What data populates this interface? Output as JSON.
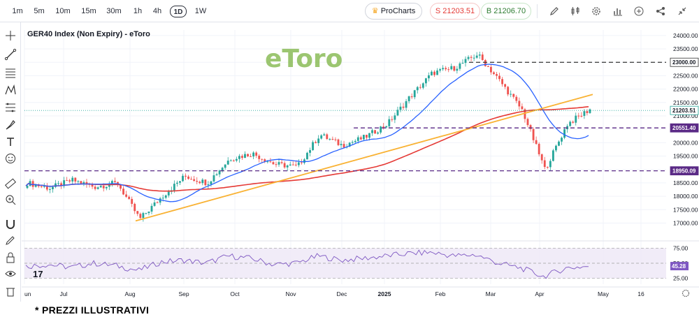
{
  "toolbar": {
    "timeframes": [
      "1m",
      "5m",
      "10m",
      "15m",
      "30m",
      "1h",
      "4h",
      "1D",
      "1W"
    ],
    "active_timeframe": "1D",
    "procharts_label": "ProCharts",
    "sell_label": "S 21203.51",
    "buy_label": "B 21206.70",
    "colors": {
      "sell": "#e53935",
      "buy": "#2e7d32",
      "crown": "#f5a623"
    }
  },
  "chart": {
    "title": "GER40 Index (Non Expiry) - eToro",
    "watermark": "eToro",
    "footer_note": "* PREZZI ILLUSTRATIVI",
    "y_ticks": [
      "24000.00",
      "23500.00",
      "23000.00",
      "22500.00",
      "22000.00",
      "21500.00",
      "21000.00",
      "20500.00",
      "20000.00",
      "19500.00",
      "19000.00",
      "18500.00",
      "18000.00",
      "17500.00",
      "17000.00"
    ],
    "rsi_ticks": [
      "75.00",
      "50.00",
      "25.00"
    ],
    "rsi_value_label": "45.28",
    "x_labels": [
      "un",
      "Jul",
      "Aug",
      "Sep",
      "Oct",
      "Nov",
      "Dec",
      "2025",
      "Feb",
      "Mar",
      "Apr",
      "May",
      "16"
    ],
    "price_labels": {
      "level_23000": "23000.00",
      "current": "21203.51",
      "level_20551": "20551.40",
      "level_18950": "18950.09"
    },
    "colors": {
      "up": "#26a69a",
      "down": "#ef5350",
      "sma_blue": "#2962ff",
      "sma_red": "#e53935",
      "trendline": "#f9b233",
      "purple": "#5b2a86",
      "rsi_line": "#7e57c2",
      "rsi_bg": "#ede7f6",
      "watermark": "#7cb342"
    }
  },
  "chart_data": {
    "type": "candlestick",
    "title": "GER40 Index (Non Expiry) - eToro",
    "ylim": [
      16700,
      24100
    ],
    "rsi_ylim": [
      20,
      80
    ],
    "horizontal_levels": [
      23000,
      20551.4,
      18950.09
    ],
    "current_price": 21203.51,
    "path_points": [
      {
        "x": "Jun",
        "y": 18500
      },
      {
        "x": "Jun end",
        "y": 18300
      },
      {
        "x": "Jul",
        "y": 18600
      },
      {
        "x": "Jul mid",
        "y": 18350
      },
      {
        "x": "Jul end",
        "y": 18500
      },
      {
        "x": "Aug",
        "y": 17150
      },
      {
        "x": "Aug mid",
        "y": 18000
      },
      {
        "x": "Sep",
        "y": 18750
      },
      {
        "x": "Sep mid",
        "y": 18500
      },
      {
        "x": "Oct",
        "y": 19400
      },
      {
        "x": "Oct mid",
        "y": 19600
      },
      {
        "x": "Nov",
        "y": 19200
      },
      {
        "x": "Nov mid",
        "y": 19100
      },
      {
        "x": "Dec",
        "y": 20300
      },
      {
        "x": "Dec mid",
        "y": 19900
      },
      {
        "x": "2025",
        "y": 20200
      },
      {
        "x": "Jan mid",
        "y": 20700
      },
      {
        "x": "Feb",
        "y": 21700
      },
      {
        "x": "Feb mid",
        "y": 22600
      },
      {
        "x": "Mar",
        "y": 22800
      },
      {
        "x": "Mar mid",
        "y": 23300
      },
      {
        "x": "Mar end",
        "y": 22300
      },
      {
        "x": "Apr",
        "y": 21200
      },
      {
        "x": "Apr 7",
        "y": 19000
      },
      {
        "x": "Apr mid",
        "y": 20700
      },
      {
        "x": "Apr 16",
        "y": 21250
      }
    ],
    "rsi": [
      45,
      48,
      43,
      50,
      46,
      38,
      52,
      55,
      50,
      62,
      58,
      48,
      50,
      62,
      55,
      58,
      62,
      66,
      68,
      62,
      64,
      50,
      42,
      28,
      42,
      45
    ]
  }
}
